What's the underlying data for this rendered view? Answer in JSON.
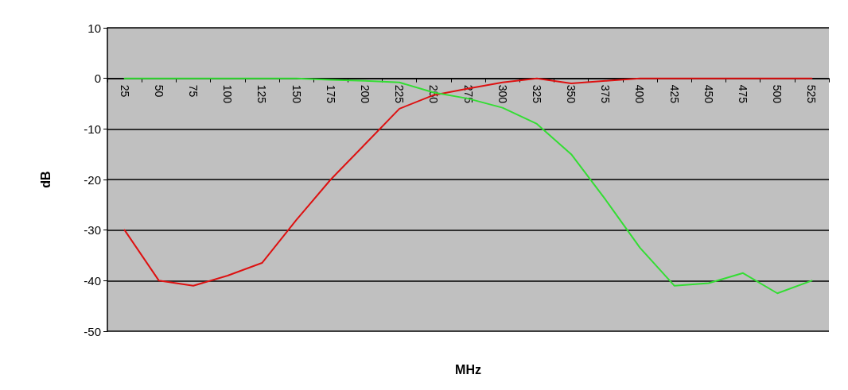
{
  "chart_data": {
    "type": "line",
    "xlabel": "MHz",
    "ylabel": "dB",
    "categories": [
      "25",
      "50",
      "75",
      "100",
      "125",
      "150",
      "175",
      "200",
      "225",
      "250",
      "275",
      "300",
      "325",
      "350",
      "375",
      "400",
      "425",
      "450",
      "475",
      "500",
      "525"
    ],
    "series": [
      {
        "color": "#dd1111",
        "values": [
          -30,
          -40,
          -41,
          -39,
          -36.5,
          -28,
          -20,
          -13,
          -6,
          -3.3,
          -2,
          -0.8,
          0,
          -1,
          -0.5,
          0,
          0,
          0,
          0,
          0,
          0
        ]
      },
      {
        "color": "#33dd33",
        "values": [
          0,
          0,
          0,
          0,
          0,
          0,
          -0.3,
          -0.5,
          -0.8,
          -2.8,
          -4,
          -5.8,
          -9,
          -15,
          -24,
          -33.5,
          -41,
          -40.5,
          -38.5,
          -42.5,
          -40
        ]
      }
    ],
    "ylim": [
      -50,
      10
    ],
    "yticks": [
      -50,
      -40,
      -30,
      -20,
      -10,
      0,
      10
    ],
    "grid": "y",
    "marker": "none",
    "line_style": "solid"
  }
}
